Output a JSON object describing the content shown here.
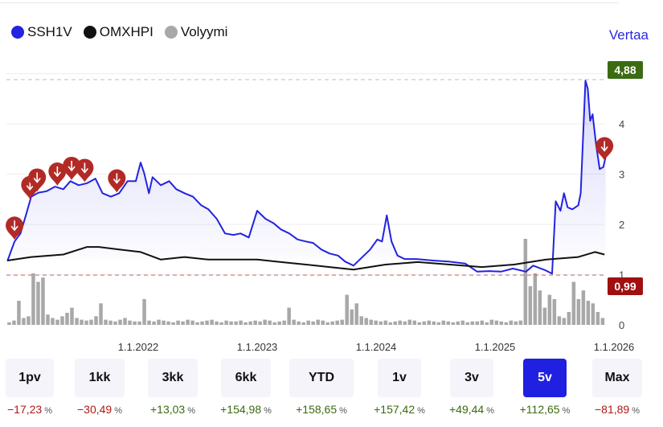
{
  "legend": [
    {
      "label": "SSH1V",
      "color": "#2323e0"
    },
    {
      "label": "OMXHPI",
      "color": "#111111"
    },
    {
      "label": "Volyymi",
      "color": "#a8a8a8"
    }
  ],
  "compare_label": "Vertaa",
  "chart_data": {
    "type": "line",
    "xlabel": "",
    "ylabel": "",
    "ylim": [
      0,
      5.2
    ],
    "yticks": [
      "0",
      "1",
      "2",
      "3",
      "4"
    ],
    "xticks": [
      {
        "x": 2022,
        "label": "1.1.2022"
      },
      {
        "x": 2023,
        "label": "1.1.2023"
      },
      {
        "x": 2024,
        "label": "1.1.2024"
      },
      {
        "x": 2025,
        "label": "1.1.2025"
      },
      {
        "x": 2026,
        "label": "1.1.2026"
      }
    ],
    "high": {
      "value": 4.88,
      "label": "4,88",
      "color": "#3b6b12"
    },
    "low": {
      "value": 0.99,
      "label": "0,99",
      "color": "#a01010"
    },
    "series": [
      {
        "name": "SSH1V",
        "color": "#2323e0",
        "points": [
          [
            2020.9,
            1.27
          ],
          [
            2020.96,
            1.66
          ],
          [
            2021.01,
            1.82
          ],
          [
            2021.06,
            2.22
          ],
          [
            2021.1,
            2.55
          ],
          [
            2021.16,
            2.63
          ],
          [
            2021.23,
            2.66
          ],
          [
            2021.3,
            2.75
          ],
          [
            2021.37,
            2.7
          ],
          [
            2021.43,
            2.86
          ],
          [
            2021.5,
            2.78
          ],
          [
            2021.57,
            2.82
          ],
          [
            2021.64,
            2.91
          ],
          [
            2021.7,
            2.62
          ],
          [
            2021.77,
            2.55
          ],
          [
            2021.84,
            2.62
          ],
          [
            2021.91,
            2.86
          ],
          [
            2021.98,
            2.86
          ],
          [
            2022.02,
            3.23
          ],
          [
            2022.05,
            3.02
          ],
          [
            2022.09,
            2.62
          ],
          [
            2022.12,
            2.94
          ],
          [
            2022.19,
            2.78
          ],
          [
            2022.26,
            2.86
          ],
          [
            2022.32,
            2.7
          ],
          [
            2022.39,
            2.62
          ],
          [
            2022.46,
            2.55
          ],
          [
            2022.53,
            2.38
          ],
          [
            2022.59,
            2.3
          ],
          [
            2022.66,
            2.11
          ],
          [
            2022.73,
            1.82
          ],
          [
            2022.8,
            1.79
          ],
          [
            2022.86,
            1.82
          ],
          [
            2022.93,
            1.74
          ],
          [
            2023.0,
            2.27
          ],
          [
            2023.07,
            2.11
          ],
          [
            2023.14,
            2.02
          ],
          [
            2023.2,
            1.9
          ],
          [
            2023.27,
            1.82
          ],
          [
            2023.34,
            1.7
          ],
          [
            2023.41,
            1.66
          ],
          [
            2023.47,
            1.63
          ],
          [
            2023.54,
            1.5
          ],
          [
            2023.61,
            1.42
          ],
          [
            2023.68,
            1.38
          ],
          [
            2023.74,
            1.26
          ],
          [
            2023.81,
            1.18
          ],
          [
            2023.88,
            1.34
          ],
          [
            2023.95,
            1.5
          ],
          [
            2024.01,
            1.7
          ],
          [
            2024.05,
            1.66
          ],
          [
            2024.09,
            2.18
          ],
          [
            2024.13,
            1.66
          ],
          [
            2024.18,
            1.38
          ],
          [
            2024.24,
            1.31
          ],
          [
            2024.34,
            1.31
          ],
          [
            2024.48,
            1.28
          ],
          [
            2024.61,
            1.26
          ],
          [
            2024.75,
            1.22
          ],
          [
            2024.85,
            1.06
          ],
          [
            2024.95,
            1.07
          ],
          [
            2025.05,
            1.06
          ],
          [
            2025.15,
            1.12
          ],
          [
            2025.26,
            1.06
          ],
          [
            2025.32,
            1.18
          ],
          [
            2025.42,
            1.09
          ],
          [
            2025.48,
            1.02
          ],
          [
            2025.51,
            2.46
          ],
          [
            2025.55,
            2.27
          ],
          [
            2025.58,
            2.62
          ],
          [
            2025.61,
            2.34
          ],
          [
            2025.65,
            2.3
          ],
          [
            2025.7,
            2.38
          ],
          [
            2025.72,
            2.62
          ],
          [
            2025.76,
            4.86
          ],
          [
            2025.78,
            4.7
          ],
          [
            2025.8,
            4.06
          ],
          [
            2025.82,
            4.19
          ],
          [
            2025.85,
            3.58
          ],
          [
            2025.88,
            3.1
          ],
          [
            2025.91,
            3.14
          ],
          [
            2025.93,
            3.34
          ]
        ]
      },
      {
        "name": "OMXHPI",
        "color": "#111111",
        "points": [
          [
            2020.9,
            1.28
          ],
          [
            2021.1,
            1.35
          ],
          [
            2021.37,
            1.4
          ],
          [
            2021.57,
            1.55
          ],
          [
            2021.67,
            1.55
          ],
          [
            2021.84,
            1.5
          ],
          [
            2022.02,
            1.45
          ],
          [
            2022.19,
            1.3
          ],
          [
            2022.39,
            1.35
          ],
          [
            2022.59,
            1.3
          ],
          [
            2022.8,
            1.3
          ],
          [
            2023.0,
            1.3
          ],
          [
            2023.2,
            1.25
          ],
          [
            2023.41,
            1.2
          ],
          [
            2023.61,
            1.15
          ],
          [
            2023.81,
            1.1
          ],
          [
            2024.08,
            1.2
          ],
          [
            2024.35,
            1.25
          ],
          [
            2024.62,
            1.2
          ],
          [
            2024.89,
            1.15
          ],
          [
            2025.16,
            1.2
          ],
          [
            2025.43,
            1.3
          ],
          [
            2025.7,
            1.35
          ],
          [
            2025.84,
            1.45
          ],
          [
            2025.92,
            1.4
          ]
        ]
      }
    ],
    "volume": {
      "name": "Volyymi",
      "color": "#a8a8a8",
      "x_start": 2020.9,
      "x_end": 2025.93,
      "values": [
        3,
        5,
        28,
        8,
        10,
        60,
        50,
        55,
        12,
        8,
        6,
        10,
        14,
        20,
        8,
        6,
        5,
        6,
        10,
        25,
        6,
        5,
        4,
        6,
        8,
        5,
        4,
        4,
        30,
        5,
        4,
        6,
        5,
        4,
        3,
        5,
        4,
        6,
        5,
        3,
        4,
        5,
        6,
        4,
        3,
        5,
        4,
        4,
        5,
        3,
        4,
        5,
        4,
        6,
        5,
        3,
        4,
        5,
        20,
        6,
        4,
        3,
        5,
        4,
        6,
        5,
        3,
        4,
        5,
        6,
        35,
        18,
        25,
        10,
        8,
        6,
        5,
        4,
        5,
        3,
        4,
        5,
        4,
        6,
        5,
        3,
        4,
        5,
        4,
        3,
        5,
        4,
        3,
        4,
        5,
        3,
        4,
        4,
        5,
        3,
        6,
        5,
        4,
        3,
        5,
        4,
        5,
        100,
        45,
        60,
        40,
        20,
        35,
        30,
        10,
        8,
        15,
        50,
        30,
        40,
        28,
        25,
        15,
        8
      ]
    },
    "dividend_markers": [
      2020.96,
      2021.09,
      2021.15,
      2021.32,
      2021.44,
      2021.55,
      2021.82,
      2025.92
    ]
  },
  "ranges": [
    {
      "label": "1pv",
      "change": "−17,23",
      "dir": "neg"
    },
    {
      "label": "1kk",
      "change": "−30,49",
      "dir": "neg"
    },
    {
      "label": "3kk",
      "change": "+13,03",
      "dir": "pos"
    },
    {
      "label": "6kk",
      "change": "+154,98",
      "dir": "pos"
    },
    {
      "label": "YTD",
      "change": "+158,65",
      "dir": "pos"
    },
    {
      "label": "1v",
      "change": "+157,42",
      "dir": "pos"
    },
    {
      "label": "3v",
      "change": "+49,44",
      "dir": "pos"
    },
    {
      "label": "5v",
      "change": "+112,65",
      "dir": "pos",
      "active": true
    },
    {
      "label": "Max",
      "change": "−81,89",
      "dir": "neg"
    }
  ],
  "percent_unit": "%"
}
